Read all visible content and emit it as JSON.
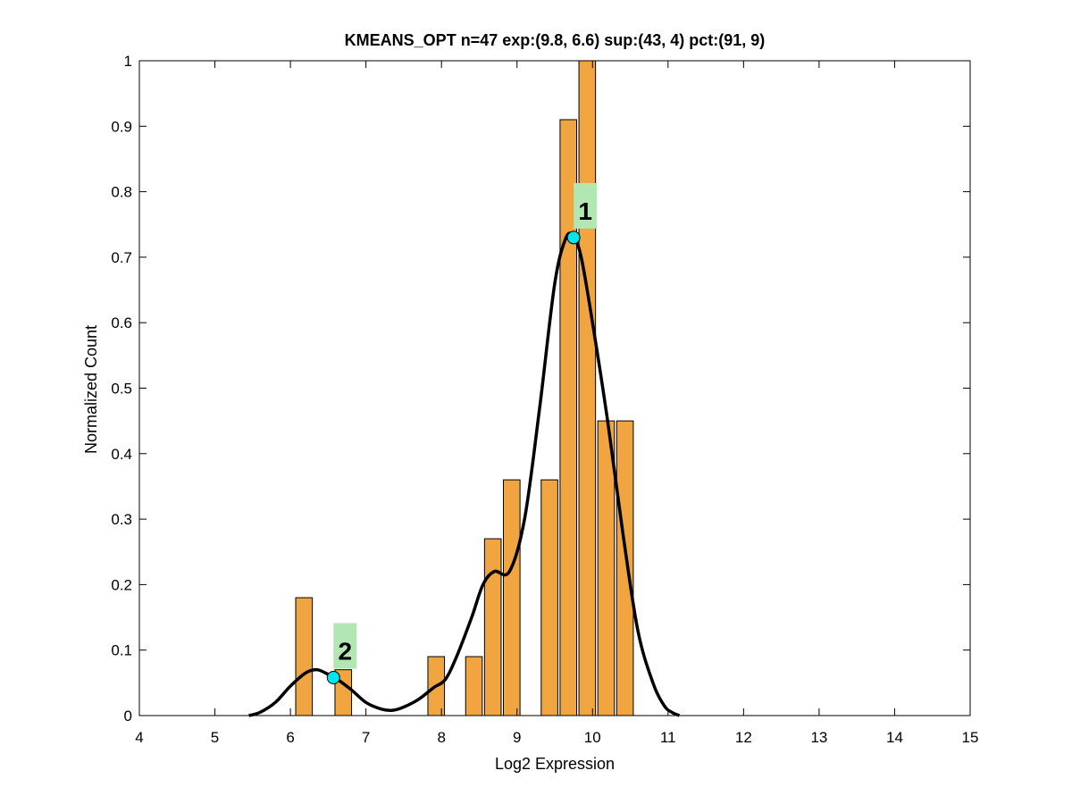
{
  "chart_data": {
    "type": "bar",
    "title": "KMEANS_OPT n=47 exp:(9.8, 6.6) sup:(43, 4) pct:(91, 9)",
    "xlabel": "Log2 Expression",
    "ylabel": "Normalized Count",
    "xlim": [
      4,
      15
    ],
    "ylim": [
      0,
      1
    ],
    "xticks": [
      "4",
      "5",
      "6",
      "7",
      "8",
      "9",
      "10",
      "11",
      "12",
      "13",
      "14",
      "15"
    ],
    "yticks": [
      "0",
      "0.1",
      "0.2",
      "0.3",
      "0.4",
      "0.5",
      "0.6",
      "0.7",
      "0.8",
      "0.9",
      "1"
    ],
    "grid": false,
    "bar_width": 0.22,
    "bars": [
      {
        "x": 6.18,
        "value": 0.18
      },
      {
        "x": 6.7,
        "value": 0.07
      },
      {
        "x": 7.93,
        "value": 0.09
      },
      {
        "x": 8.43,
        "value": 0.09
      },
      {
        "x": 8.68,
        "value": 0.27
      },
      {
        "x": 8.93,
        "value": 0.36
      },
      {
        "x": 9.43,
        "value": 0.36
      },
      {
        "x": 9.68,
        "value": 0.91
      },
      {
        "x": 9.93,
        "value": 1.0
      },
      {
        "x": 10.18,
        "value": 0.45
      },
      {
        "x": 10.43,
        "value": 0.45
      }
    ],
    "density_curve": {
      "x": [
        5.45,
        5.6,
        5.8,
        6.0,
        6.2,
        6.35,
        6.5,
        6.6,
        6.8,
        7.0,
        7.2,
        7.35,
        7.5,
        7.7,
        7.9,
        8.05,
        8.2,
        8.4,
        8.55,
        8.7,
        8.9,
        9.1,
        9.3,
        9.5,
        9.65,
        9.75,
        9.85,
        10.0,
        10.2,
        10.4,
        10.6,
        10.8,
        10.95,
        11.05,
        11.15
      ],
      "y": [
        0.0,
        0.005,
        0.02,
        0.045,
        0.065,
        0.07,
        0.063,
        0.057,
        0.04,
        0.02,
        0.01,
        0.008,
        0.013,
        0.025,
        0.043,
        0.055,
        0.09,
        0.15,
        0.2,
        0.22,
        0.22,
        0.3,
        0.47,
        0.66,
        0.73,
        0.73,
        0.7,
        0.6,
        0.45,
        0.28,
        0.13,
        0.05,
        0.015,
        0.005,
        0.0
      ]
    },
    "peaks": [
      {
        "label": "1",
        "x": 9.75,
        "y": 0.73
      },
      {
        "label": "2",
        "x": 6.57,
        "y": 0.058
      }
    ],
    "colors": {
      "bar_fill": "#F0A540",
      "bar_edge": "#000000",
      "curve": "#000000",
      "peak_marker": "#00E5EE",
      "peak_label_bg": "#B2E6B2"
    }
  }
}
